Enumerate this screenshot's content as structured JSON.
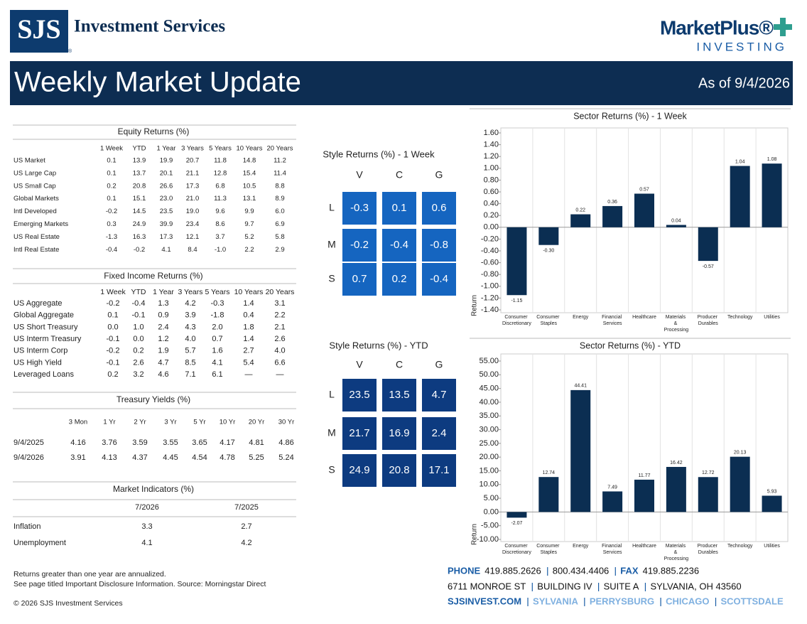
{
  "header": {
    "logo": "SJS",
    "logo_mark": "®",
    "company": "Investment Services",
    "partner": "MarketPlus®",
    "partner_sub": "INVESTING",
    "title": "Weekly Market Update",
    "as_of": "As of 9/4/2026"
  },
  "equity": {
    "title": "Equity Returns (%)",
    "columns": [
      "1 Week",
      "YTD",
      "1 Year",
      "3 Years",
      "5 Years",
      "10 Years",
      "20 Years"
    ],
    "rows": [
      {
        "label": "US Market",
        "values": [
          "0.1",
          "13.9",
          "19.9",
          "20.7",
          "11.8",
          "14.8",
          "11.2"
        ]
      },
      {
        "label": "US Large Cap",
        "values": [
          "0.1",
          "13.7",
          "20.1",
          "21.1",
          "12.8",
          "15.4",
          "11.4"
        ]
      },
      {
        "label": "US Small Cap",
        "values": [
          "0.2",
          "20.8",
          "26.6",
          "17.3",
          "6.8",
          "10.5",
          "8.8"
        ]
      },
      {
        "label": "Global Markets",
        "values": [
          "0.1",
          "15.1",
          "23.0",
          "21.0",
          "11.3",
          "13.1",
          "8.9"
        ]
      },
      {
        "label": "Intl Developed",
        "values": [
          "-0.2",
          "14.5",
          "23.5",
          "19.0",
          "9.6",
          "9.9",
          "6.0"
        ]
      },
      {
        "label": "Emerging Markets",
        "values": [
          "0.3",
          "24.9",
          "39.9",
          "23.4",
          "8.6",
          "9.7",
          "6.9"
        ]
      },
      {
        "label": "US Real Estate",
        "values": [
          "-1.3",
          "16.3",
          "17.3",
          "12.1",
          "3.7",
          "5.2",
          "5.8"
        ]
      },
      {
        "label": "Intl Real Estate",
        "values": [
          "-0.4",
          "-0.2",
          "4.1",
          "8.4",
          "-1.0",
          "2.2",
          "2.9"
        ]
      }
    ]
  },
  "fixed_income": {
    "title": "Fixed Income Returns (%)",
    "columns": [
      "1 Week",
      "YTD",
      "1 Year",
      "3 Years",
      "5 Years",
      "10 Years",
      "20 Years"
    ],
    "rows": [
      {
        "label": "US Aggregate",
        "values": [
          "-0.2",
          "-0.4",
          "1.3",
          "4.2",
          "-0.3",
          "1.4",
          "3.1"
        ]
      },
      {
        "label": "Global Aggregate",
        "values": [
          "0.1",
          "-0.1",
          "0.9",
          "3.9",
          "-1.8",
          "0.4",
          "2.2"
        ]
      },
      {
        "label": "US Short Treasury",
        "values": [
          "0.0",
          "1.0",
          "2.4",
          "4.3",
          "2.0",
          "1.8",
          "2.1"
        ]
      },
      {
        "label": "US Interm Treasury",
        "values": [
          "-0.1",
          "0.0",
          "1.2",
          "4.0",
          "0.7",
          "1.4",
          "2.6"
        ]
      },
      {
        "label": "US Interm Corp",
        "values": [
          "-0.2",
          "0.2",
          "1.9",
          "5.7",
          "1.6",
          "2.7",
          "4.0"
        ]
      },
      {
        "label": "US High Yield",
        "values": [
          "-0.1",
          "2.6",
          "4.7",
          "8.5",
          "4.1",
          "5.4",
          "6.6"
        ]
      },
      {
        "label": "Leveraged Loans",
        "values": [
          "0.2",
          "3.2",
          "4.6",
          "7.1",
          "6.1",
          "—",
          "—"
        ]
      }
    ]
  },
  "treasury": {
    "title": "Treasury Yields (%)",
    "columns": [
      "3 Mon",
      "1 Yr",
      "2 Yr",
      "3 Yr",
      "5 Yr",
      "10 Yr",
      "20 Yr",
      "30 Yr"
    ],
    "rows": [
      {
        "label": "9/4/2025",
        "values": [
          "4.16",
          "3.76",
          "3.59",
          "3.55",
          "3.65",
          "4.17",
          "4.81",
          "4.86"
        ]
      },
      {
        "label": "9/4/2026",
        "values": [
          "3.91",
          "4.13",
          "4.37",
          "4.45",
          "4.54",
          "4.78",
          "5.25",
          "5.24"
        ]
      }
    ]
  },
  "indicators": {
    "title": "Market Indicators (%)",
    "columns": [
      "7/2026",
      "7/2025"
    ],
    "rows": [
      {
        "label": "Inflation",
        "values": [
          "3.3",
          "2.7"
        ]
      },
      {
        "label": "Unemployment",
        "values": [
          "4.1",
          "4.2"
        ]
      }
    ]
  },
  "style_week": {
    "title": "Style Returns (%) - 1 Week",
    "columns": [
      "V",
      "C",
      "G"
    ],
    "color": "#1565c0",
    "rows": [
      {
        "label": "L",
        "values": [
          "-0.3",
          "0.1",
          "0.6"
        ]
      },
      {
        "label": "M",
        "values": [
          "-0.2",
          "-0.4",
          "-0.8"
        ]
      },
      {
        "label": "S",
        "values": [
          "0.7",
          "0.2",
          "-0.4"
        ]
      }
    ]
  },
  "style_ytd": {
    "title": "Style Returns (%) - YTD",
    "columns": [
      "V",
      "C",
      "G"
    ],
    "color": "#0d3b80",
    "rows": [
      {
        "label": "L",
        "values": [
          "23.5",
          "13.5",
          "4.7"
        ]
      },
      {
        "label": "M",
        "values": [
          "21.7",
          "16.9",
          "2.4"
        ]
      },
      {
        "label": "S",
        "values": [
          "24.9",
          "20.8",
          "17.1"
        ]
      }
    ]
  },
  "chart_data": [
    {
      "type": "bar",
      "title": "Sector Returns (%) - 1 Week",
      "y_label": "Return",
      "color": "#0b2e52",
      "categories": [
        "Consumer Discretionary",
        "Consumer Staples",
        "Energy",
        "Financial Services",
        "Healthcare",
        "Materials & Processing",
        "Producer Durables",
        "Technology",
        "Utilities"
      ],
      "values": [
        -1.15,
        -0.3,
        0.22,
        0.36,
        0.57,
        0.04,
        -0.57,
        1.04,
        1.08
      ],
      "value_labels": [
        "-1.15",
        "-0.30",
        "0.22",
        "0.36",
        "0.57",
        "0.04",
        "-0.57",
        "1.04",
        "1.08"
      ],
      "ylim": [
        -1.4,
        1.6
      ],
      "yticks": [
        {
          "value": -1.4,
          "label": "-1.40"
        },
        {
          "value": -1.2,
          "label": "-1.20"
        },
        {
          "value": -1.0,
          "label": "-1.00"
        },
        {
          "value": -0.8,
          "label": "-0.80"
        },
        {
          "value": -0.6,
          "label": "-0.60"
        },
        {
          "value": -0.4,
          "label": "-0.40"
        },
        {
          "value": -0.2,
          "label": "-0.20"
        },
        {
          "value": 0,
          "label": "0.00"
        },
        {
          "value": 0.2,
          "label": "0.20"
        },
        {
          "value": 0.4,
          "label": "0.40"
        },
        {
          "value": 0.6,
          "label": "0.60"
        },
        {
          "value": 0.8,
          "label": "0.80"
        },
        {
          "value": 1.0,
          "label": "1.00"
        },
        {
          "value": 1.2,
          "label": "1.20"
        },
        {
          "value": 1.4,
          "label": "1.40"
        },
        {
          "value": 1.6,
          "label": "1.60"
        }
      ]
    },
    {
      "type": "bar",
      "title": "Sector Returns (%) - YTD",
      "y_label": "Return",
      "color": "#0b2e52",
      "categories": [
        "Consumer Discretionary",
        "Consumer Staples",
        "Energy",
        "Financial Services",
        "Healthcare",
        "Materials & Processing",
        "Producer Durables",
        "Technology",
        "Utilities"
      ],
      "values": [
        -2.07,
        12.74,
        44.41,
        7.49,
        11.77,
        16.42,
        12.72,
        20.13,
        5.93
      ],
      "ylim": [
        -10,
        55
      ],
      "yticks": [
        {
          "value": -10,
          "label": "-10.00"
        },
        {
          "value": -5,
          "label": "-5.00"
        },
        {
          "value": 0,
          "label": "0.00"
        },
        {
          "value": 5,
          "label": "5.00"
        },
        {
          "value": 10,
          "label": "10.00"
        },
        {
          "value": 15,
          "label": "15.00"
        },
        {
          "value": 20,
          "label": "20.00"
        },
        {
          "value": 25,
          "label": "25.00"
        },
        {
          "value": 30,
          "label": "30.00"
        },
        {
          "value": 35,
          "label": "35.00"
        },
        {
          "value": 40,
          "label": "40.00"
        },
        {
          "value": 45,
          "label": "45.00"
        },
        {
          "value": 50,
          "label": "50.00"
        },
        {
          "value": 55,
          "label": "55.00"
        }
      ]
    }
  ],
  "notes": [
    "Returns greater than one year are annualized.",
    "See page titled Important Disclosure Information. Source: Morningstar Direct"
  ],
  "copyright": "© 2026 SJS Investment Services",
  "contact": {
    "phone_label": "PHONE",
    "phones": [
      "419.885.2626",
      "800.434.4406"
    ],
    "fax_label": "FAX",
    "fax": "419.885.2236",
    "address": [
      "6711 MONROE ST",
      "BUILDING IV",
      "SUITE A",
      "SYLVANIA, OH 43560"
    ],
    "web": "SJSINVEST.COM",
    "locations": [
      "SYLVANIA",
      "PERRYSBURG",
      "CHICAGO",
      "SCOTTSDALE"
    ]
  }
}
